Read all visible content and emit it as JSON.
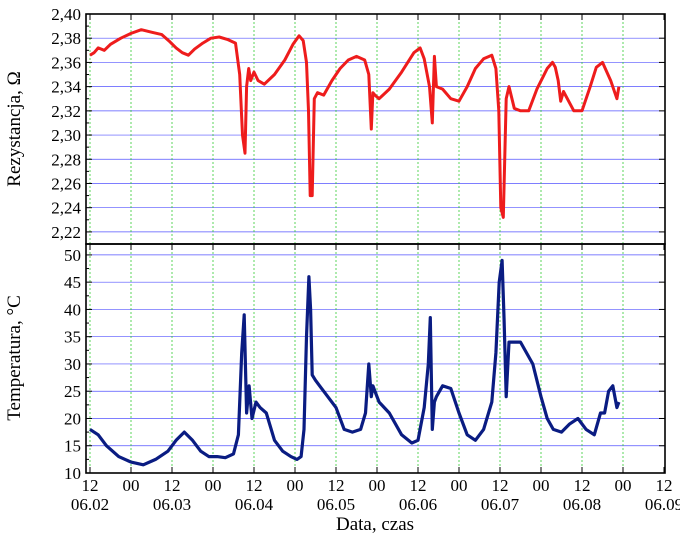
{
  "chart_data": [
    {
      "type": "line",
      "panel": "top",
      "ylabel": "Rezystancja, Ω",
      "ylim": [
        2.21,
        2.4
      ],
      "yticks": [
        2.22,
        2.24,
        2.26,
        2.28,
        2.3,
        2.32,
        2.34,
        2.36,
        2.38,
        2.4
      ],
      "ytick_labels": [
        "2,22",
        "2,24",
        "2,26",
        "2,28",
        "2,30",
        "2,32",
        "2,34",
        "2,36",
        "2,38",
        "2,40"
      ],
      "grid": true,
      "series": [
        {
          "color": "#ee1c1c",
          "x": [
            0,
            0.1,
            0.2,
            0.35,
            0.5,
            0.75,
            1.0,
            1.25,
            1.5,
            1.75,
            1.95,
            2.1,
            2.25,
            2.4,
            2.55,
            2.75,
            2.95,
            3.15,
            3.35,
            3.55,
            3.65,
            3.72,
            3.78,
            3.82,
            3.87,
            3.92,
            4.0,
            4.1,
            4.25,
            4.5,
            4.75,
            4.95,
            5.1,
            5.2,
            5.28,
            5.33,
            5.37,
            5.42,
            5.47,
            5.55,
            5.7,
            5.9,
            6.1,
            6.3,
            6.5,
            6.7,
            6.8,
            6.86,
            6.9,
            6.95,
            7.05,
            7.3,
            7.6,
            7.9,
            8.05,
            8.15,
            8.28,
            8.35,
            8.4,
            8.45,
            8.6,
            8.8,
            9.0,
            9.2,
            9.4,
            9.6,
            9.8,
            9.9,
            9.97,
            10.02,
            10.08,
            10.15,
            10.22,
            10.35,
            10.5,
            10.7,
            10.9,
            11.05,
            11.15,
            11.28,
            11.35,
            11.42,
            11.48,
            11.55,
            11.8,
            12.0,
            12.2,
            12.35,
            12.5,
            12.7,
            12.85,
            12.9
          ],
          "values": [
            2.366,
            2.368,
            2.372,
            2.37,
            2.375,
            2.38,
            2.384,
            2.387,
            2.385,
            2.383,
            2.377,
            2.372,
            2.368,
            2.366,
            2.371,
            2.376,
            2.38,
            2.381,
            2.379,
            2.376,
            2.35,
            2.3,
            2.285,
            2.34,
            2.355,
            2.345,
            2.352,
            2.345,
            2.342,
            2.35,
            2.362,
            2.375,
            2.382,
            2.378,
            2.36,
            2.32,
            2.25,
            2.25,
            2.33,
            2.335,
            2.333,
            2.345,
            2.355,
            2.362,
            2.365,
            2.362,
            2.35,
            2.305,
            2.335,
            2.333,
            2.33,
            2.338,
            2.352,
            2.368,
            2.372,
            2.363,
            2.34,
            2.31,
            2.365,
            2.34,
            2.338,
            2.33,
            2.328,
            2.34,
            2.355,
            2.363,
            2.366,
            2.355,
            2.32,
            2.24,
            2.232,
            2.33,
            2.34,
            2.322,
            2.32,
            2.32,
            2.338,
            2.348,
            2.355,
            2.36,
            2.356,
            2.345,
            2.328,
            2.336,
            2.32,
            2.32,
            2.34,
            2.356,
            2.36,
            2.345,
            2.33,
            2.34
          ]
        }
      ]
    },
    {
      "type": "line",
      "panel": "bottom",
      "ylabel": "Temperatura, °C",
      "ylim": [
        10,
        52
      ],
      "yticks": [
        10,
        15,
        20,
        25,
        30,
        35,
        40,
        45,
        50
      ],
      "ytick_labels": [
        "10",
        "15",
        "20",
        "25",
        "30",
        "35",
        "40",
        "45",
        "50"
      ],
      "grid": true,
      "xlabel": "Data, czas",
      "x_hour_ticks": [
        "12",
        "00",
        "12",
        "00",
        "12",
        "00",
        "12",
        "00",
        "12",
        "00",
        "12",
        "00",
        "12",
        "00",
        "12"
      ],
      "x_date_ticks": [
        "06.02",
        "06.03",
        "06.04",
        "06.05",
        "06.06",
        "06.07",
        "06.08",
        "06.09"
      ],
      "series": [
        {
          "color": "#0a1c82",
          "x": [
            0,
            0.2,
            0.4,
            0.7,
            1.0,
            1.3,
            1.6,
            1.9,
            2.1,
            2.3,
            2.5,
            2.7,
            2.9,
            3.1,
            3.3,
            3.5,
            3.62,
            3.7,
            3.76,
            3.82,
            3.88,
            3.95,
            4.05,
            4.15,
            4.3,
            4.5,
            4.7,
            4.9,
            5.05,
            5.15,
            5.22,
            5.28,
            5.34,
            5.38,
            5.42,
            5.5,
            5.6,
            5.8,
            6.0,
            6.2,
            6.4,
            6.6,
            6.72,
            6.8,
            6.86,
            6.9,
            6.95,
            7.05,
            7.3,
            7.6,
            7.85,
            8.0,
            8.15,
            8.25,
            8.3,
            8.35,
            8.4,
            8.45,
            8.6,
            8.8,
            9.0,
            9.2,
            9.4,
            9.6,
            9.8,
            9.9,
            9.98,
            10.05,
            10.1,
            10.15,
            10.22,
            10.3,
            10.5,
            10.8,
            11.0,
            11.15,
            11.3,
            11.5,
            11.7,
            11.9,
            12.1,
            12.3,
            12.45,
            12.55,
            12.65,
            12.75,
            12.85,
            12.9
          ],
          "values": [
            18,
            17,
            15,
            13,
            12,
            11.5,
            12.5,
            14,
            16,
            17.5,
            16,
            14,
            13,
            13,
            12.8,
            13.5,
            17,
            32,
            39,
            21,
            26,
            20,
            23,
            22,
            21,
            16,
            14,
            13,
            12.5,
            13,
            18,
            35,
            46,
            40,
            28,
            27,
            26,
            24,
            22,
            18,
            17.5,
            18,
            21,
            30,
            24,
            26,
            25,
            23,
            21,
            17,
            15.5,
            16,
            22,
            30,
            38.5,
            18,
            23,
            24,
            26,
            25.5,
            21,
            17,
            16,
            18,
            23,
            32,
            45,
            49,
            38,
            24,
            34,
            34,
            34,
            30,
            24,
            20,
            18,
            17.5,
            19,
            20,
            18,
            17,
            21,
            21,
            25,
            26,
            22,
            23
          ]
        }
      ]
    }
  ]
}
